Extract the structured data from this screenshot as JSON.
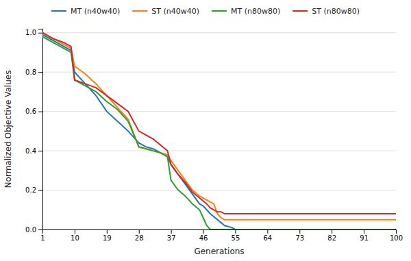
{
  "chart_data": {
    "type": "line",
    "xlabel": "Generations",
    "ylabel": "Normalized Objective Values",
    "xlim": [
      1,
      100
    ],
    "ylim": [
      0,
      1.02
    ],
    "xticks": [
      1,
      10,
      19,
      28,
      37,
      46,
      55,
      64,
      73,
      82,
      91,
      100
    ],
    "yticks": [
      {
        "value": 0,
        "label": "0.0"
      },
      0.2,
      0.4,
      0.6,
      0.8,
      {
        "value": 1.0,
        "label": "1.0"
      }
    ],
    "grid": "y",
    "legend": "top",
    "series": [
      {
        "name": "MT (n40w40)",
        "x": [
          1,
          4,
          7,
          9,
          10,
          13,
          16,
          19,
          22,
          25,
          28,
          30,
          32,
          34,
          36,
          37,
          39,
          41,
          43,
          45,
          46,
          48,
          50,
          52,
          54,
          55,
          100
        ],
        "values": [
          0.99,
          0.96,
          0.93,
          0.91,
          0.8,
          0.74,
          0.68,
          0.6,
          0.55,
          0.5,
          0.44,
          0.42,
          0.41,
          0.39,
          0.37,
          0.33,
          0.28,
          0.23,
          0.18,
          0.13,
          0.12,
          0.08,
          0.05,
          0.02,
          0.01,
          0.0,
          0.0
        ]
      },
      {
        "name": "ST (n40w40)",
        "x": [
          1,
          4,
          7,
          9,
          10,
          13,
          16,
          19,
          22,
          25,
          28,
          30,
          32,
          34,
          36,
          37,
          39,
          41,
          43,
          45,
          47,
          48,
          49,
          50,
          51,
          52,
          100
        ],
        "values": [
          1.0,
          0.97,
          0.94,
          0.92,
          0.83,
          0.79,
          0.74,
          0.68,
          0.62,
          0.56,
          0.42,
          0.41,
          0.4,
          0.39,
          0.38,
          0.35,
          0.3,
          0.25,
          0.2,
          0.17,
          0.15,
          0.14,
          0.13,
          0.08,
          0.06,
          0.05,
          0.05
        ]
      },
      {
        "name": "MT (n80w80)",
        "x": [
          1,
          4,
          7,
          9,
          10,
          13,
          16,
          19,
          22,
          25,
          28,
          30,
          32,
          34,
          36,
          37,
          39,
          41,
          43,
          45,
          46,
          47,
          48,
          100
        ],
        "values": [
          0.98,
          0.95,
          0.92,
          0.9,
          0.76,
          0.73,
          0.7,
          0.65,
          0.61,
          0.55,
          0.42,
          0.41,
          0.4,
          0.39,
          0.37,
          0.25,
          0.2,
          0.17,
          0.13,
          0.1,
          0.06,
          0.02,
          0.0,
          0.0
        ]
      },
      {
        "name": "ST (n80w80)",
        "x": [
          1,
          4,
          7,
          9,
          10,
          13,
          16,
          19,
          22,
          25,
          28,
          30,
          32,
          34,
          36,
          37,
          39,
          41,
          43,
          45,
          47,
          48,
          49,
          50,
          51,
          52,
          53,
          54,
          55,
          100
        ],
        "values": [
          1.0,
          0.97,
          0.95,
          0.93,
          0.76,
          0.74,
          0.72,
          0.68,
          0.64,
          0.6,
          0.5,
          0.48,
          0.46,
          0.43,
          0.4,
          0.33,
          0.28,
          0.24,
          0.19,
          0.16,
          0.13,
          0.11,
          0.1,
          0.09,
          0.09,
          0.08,
          0.08,
          0.08,
          0.08,
          0.08
        ]
      }
    ]
  }
}
